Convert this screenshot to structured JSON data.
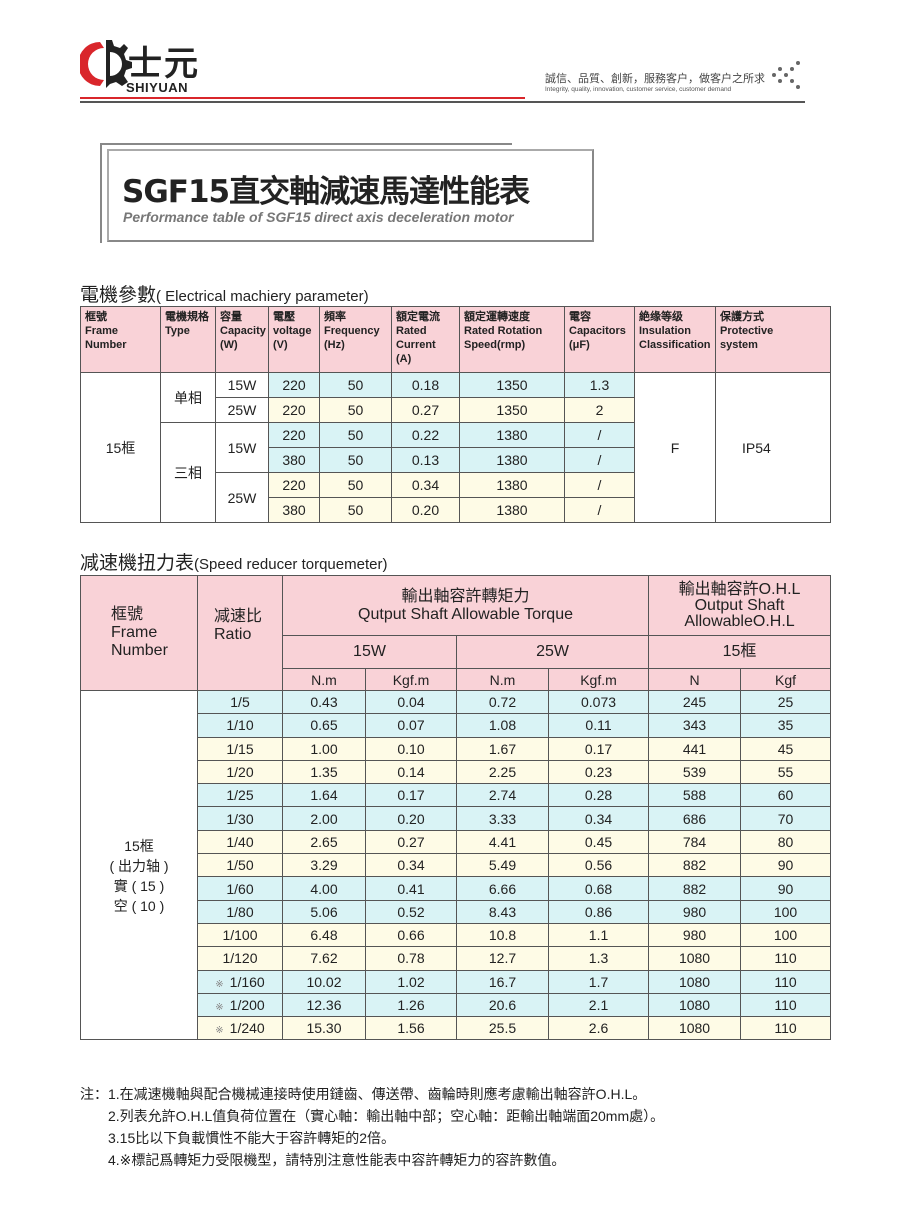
{
  "header": {
    "brand_cn": "士元",
    "brand_en": "SHIYUAN",
    "slogan": "誠信、品質、創新，服務客户，做客户之所求",
    "slogan_en": "Integrity, quality, innovation, customer service, customer demand",
    "brand_color": "#d9262b"
  },
  "title": "SGF15直交軸減速馬達性能表",
  "subtitle": "Performance table of SGF15 direct axis deceleration motor",
  "electrical": {
    "section_title": "電機參數",
    "section_title_en": "( Electrical machiery parameter)",
    "headers": [
      [
        "框號",
        "Frame",
        "Number"
      ],
      [
        "電機規格",
        "Type"
      ],
      [
        "容量",
        "Capacity",
        "(W)"
      ],
      [
        "電壓",
        "voltage",
        "(V)"
      ],
      [
        "頻率",
        "Frequency",
        "(Hz)"
      ],
      [
        "額定電流",
        "Rated",
        "Current",
        "(A)"
      ],
      [
        "額定運轉速度",
        "Rated Rotation",
        "Speed(rmp)"
      ],
      [
        "電容",
        "Capacitors",
        "(μF)"
      ],
      [
        "絶缘等级",
        "Insulation",
        "Classification"
      ],
      [
        "保護方式",
        "Protective",
        "system"
      ]
    ],
    "frame": "15框",
    "single_phase": "单相",
    "three_phase": "三相",
    "insulation": "F",
    "protection": "IP54",
    "rows": [
      {
        "capacity": "15W",
        "voltage": "220",
        "frequency": "50",
        "current": "0.18",
        "speed": "1350",
        "capacitor": "1.3"
      },
      {
        "capacity": "25W",
        "voltage": "220",
        "frequency": "50",
        "current": "0.27",
        "speed": "1350",
        "capacitor": "2"
      },
      {
        "capacity": "15W",
        "voltage": "220",
        "frequency": "50",
        "current": "0.22",
        "speed": "1380",
        "capacitor": "/"
      },
      {
        "voltage": "380",
        "frequency": "50",
        "current": "0.13",
        "speed": "1380",
        "capacitor": "/"
      },
      {
        "capacity": "25W",
        "voltage": "220",
        "frequency": "50",
        "current": "0.34",
        "speed": "1380",
        "capacitor": "/"
      },
      {
        "voltage": "380",
        "frequency": "50",
        "current": "0.20",
        "speed": "1380",
        "capacitor": "/"
      }
    ]
  },
  "torque": {
    "section_title": "减速機扭力表",
    "section_title_en": "(Speed reducer torquemeter)",
    "h_frame": [
      "框號",
      "Frame",
      "Number"
    ],
    "h_ratio": [
      "减速比",
      "Ratio"
    ],
    "h_torque": [
      "輸出軸容許轉矩力",
      "Qutput Shaft Allowable Torque"
    ],
    "h_ohl": [
      "輸出軸容許O.H.L",
      "Output Shaft",
      "AllowableO.H.L"
    ],
    "h_15w": "15W",
    "h_25w": "25W",
    "h_15frame": "15框",
    "units": [
      "N.m",
      "Kgf.m",
      "N.m",
      "Kgf.m",
      "N",
      "Kgf"
    ],
    "frame_label": [
      "15框",
      "( 出力轴 )",
      "實 ( 15 )",
      "空 ( 10 )"
    ],
    "mark": "※",
    "rows": [
      [
        "1/5",
        "0.43",
        "0.04",
        "0.72",
        "0.073",
        "245",
        "25"
      ],
      [
        "1/10",
        "0.65",
        "0.07",
        "1.08",
        "0.11",
        "343",
        "35"
      ],
      [
        "1/15",
        "1.00",
        "0.10",
        "1.67",
        "0.17",
        "441",
        "45"
      ],
      [
        "1/20",
        "1.35",
        "0.14",
        "2.25",
        "0.23",
        "539",
        "55"
      ],
      [
        "1/25",
        "1.64",
        "0.17",
        "2.74",
        "0.28",
        "588",
        "60"
      ],
      [
        "1/30",
        "2.00",
        "0.20",
        "3.33",
        "0.34",
        "686",
        "70"
      ],
      [
        "1/40",
        "2.65",
        "0.27",
        "4.41",
        "0.45",
        "784",
        "80"
      ],
      [
        "1/50",
        "3.29",
        "0.34",
        "5.49",
        "0.56",
        "882",
        "90"
      ],
      [
        "1/60",
        "4.00",
        "0.41",
        "6.66",
        "0.68",
        "882",
        "90"
      ],
      [
        "1/80",
        "5.06",
        "0.52",
        "8.43",
        "0.86",
        "980",
        "100"
      ],
      [
        "1/100",
        "6.48",
        "0.66",
        "10.8",
        "1.1",
        "980",
        "100"
      ],
      [
        "1/120",
        "7.62",
        "0.78",
        "12.7",
        "1.3",
        "1080",
        "110"
      ],
      [
        "1/160",
        "10.02",
        "1.02",
        "16.7",
        "1.7",
        "1080",
        "110"
      ],
      [
        "1/200",
        "12.36",
        "1.26",
        "20.6",
        "2.1",
        "1080",
        "110"
      ],
      [
        "1/240",
        "15.30",
        "1.56",
        "25.5",
        "2.6",
        "1080",
        "110"
      ]
    ],
    "marked_rows": [
      12,
      13,
      14
    ],
    "row_colors": [
      "c",
      "c",
      "y",
      "y",
      "c",
      "c",
      "y",
      "y",
      "c",
      "c",
      "y",
      "y",
      "c",
      "c",
      "y"
    ]
  },
  "notes": [
    "注：1.在减速機軸與配合機械連接時使用鏈齒、傳送帶、齒輪時則應考慮輸出軸容許O.H.L。",
    "2.列表允許O.H.L值負荷位置在（實心軸：輸出軸中部；空心軸：距輸出軸端面20mm處）。",
    "3.15比以下負載慣性不能大于容許轉矩的2倍。",
    "4.※標記爲轉矩力受限機型，請特別注意性能表中容許轉矩力的容許數值。"
  ],
  "colors": {
    "header_pink": "#f9d2d7",
    "row_cyan": "#d9f3f5",
    "row_yellow": "#fefbe6"
  }
}
